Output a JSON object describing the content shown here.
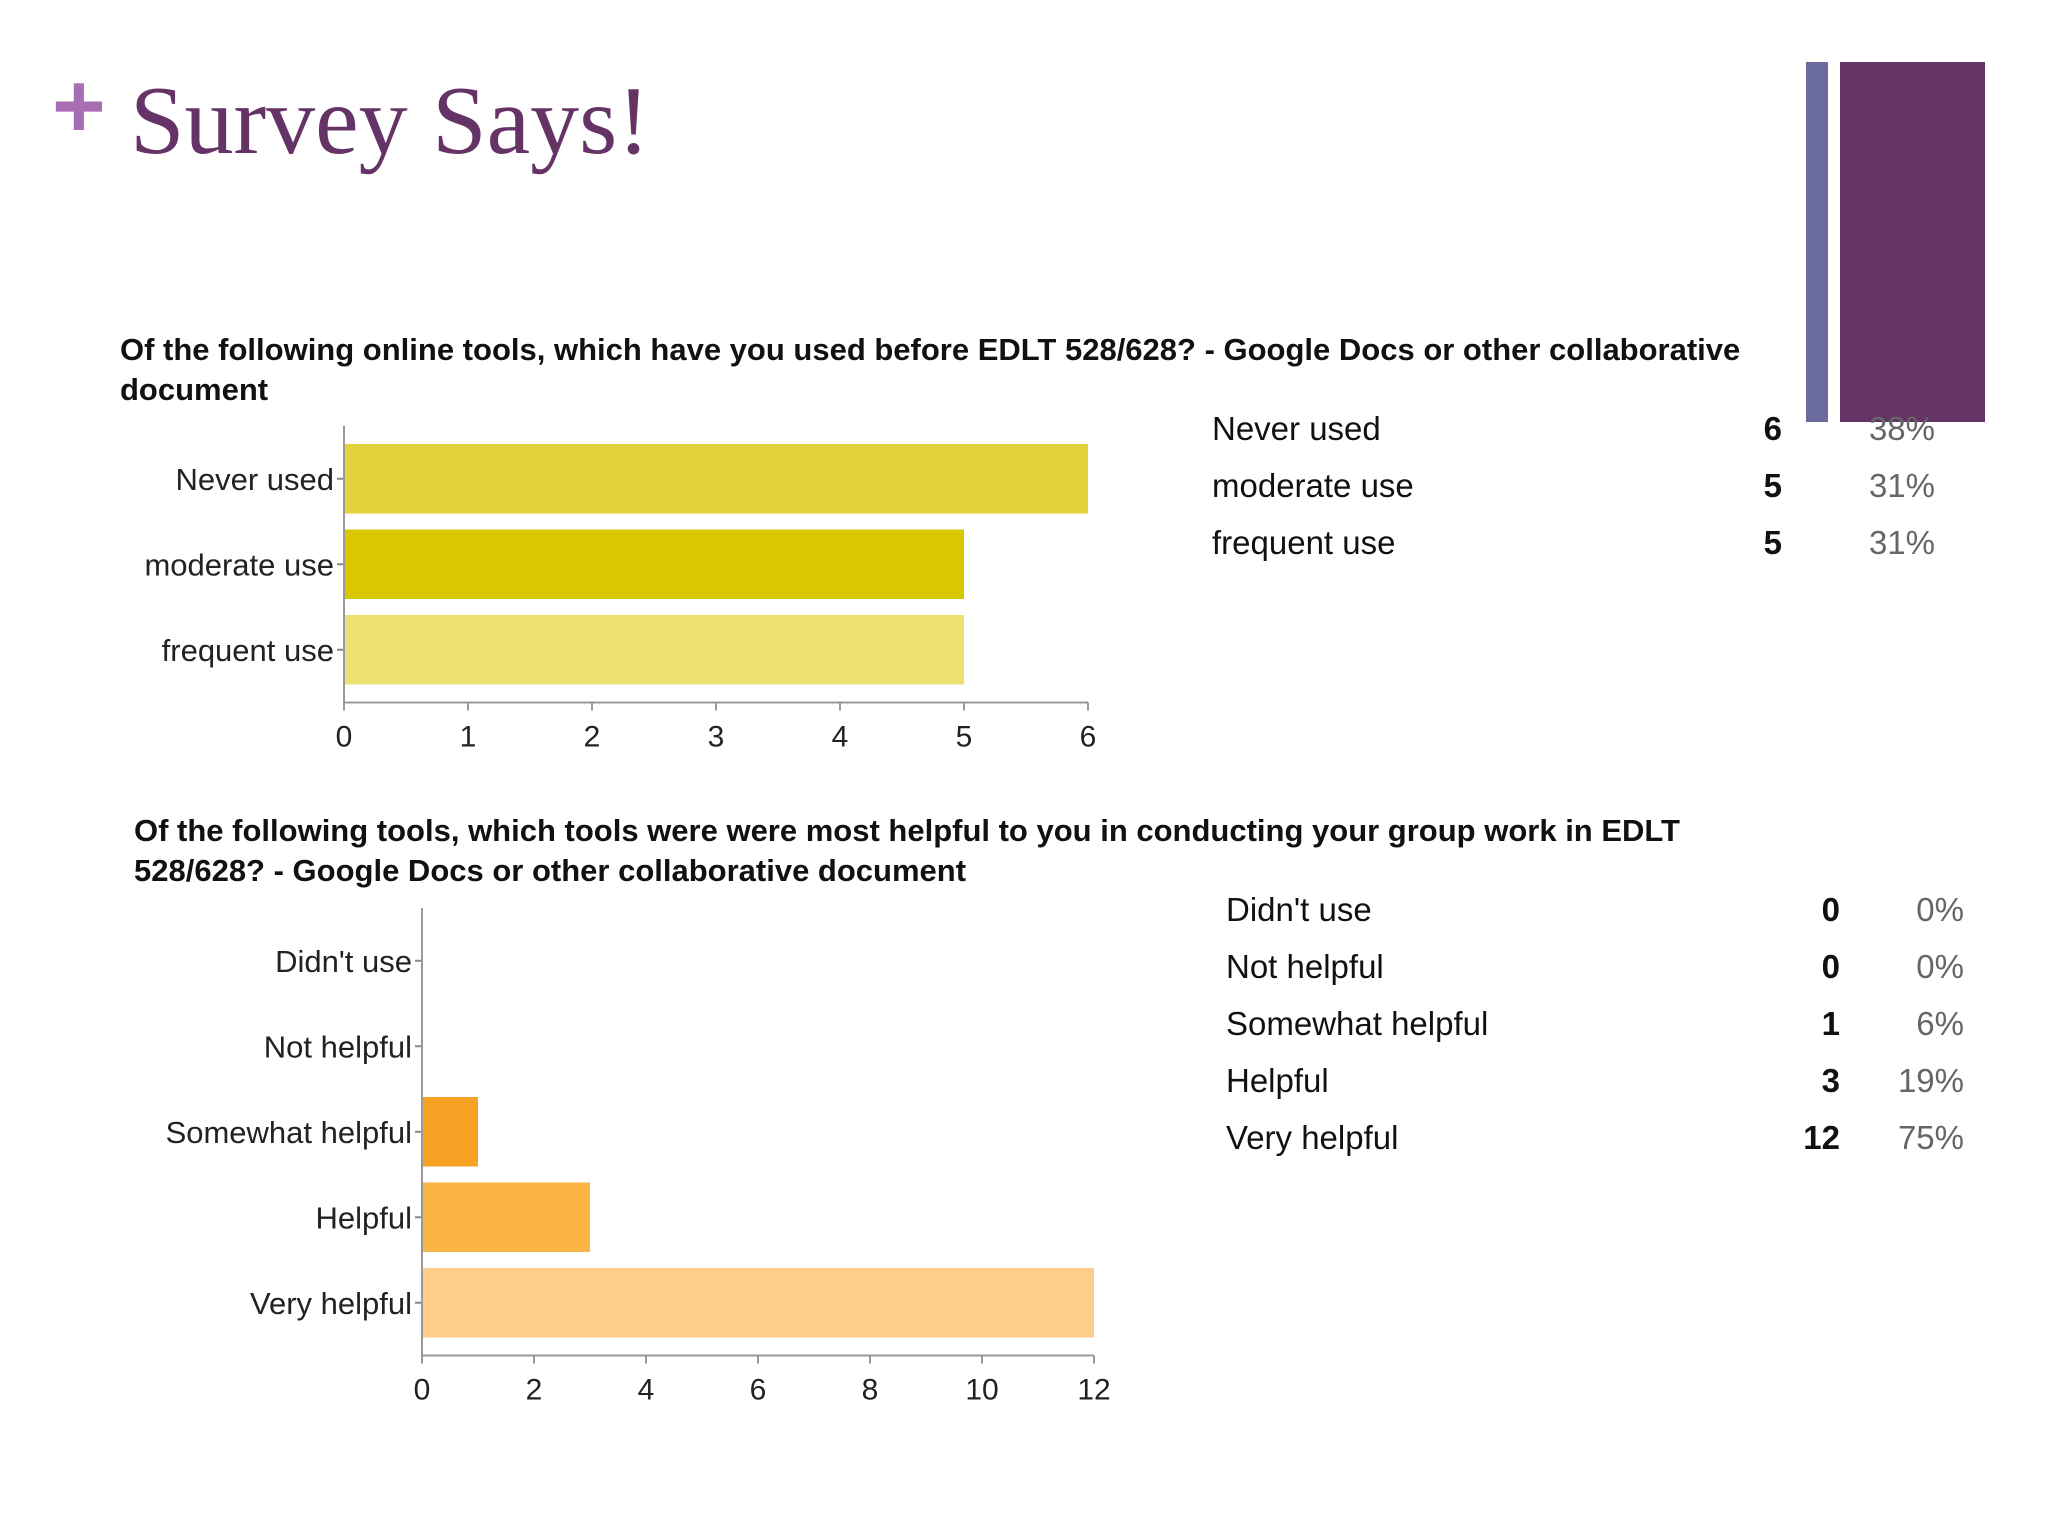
{
  "slide": {
    "plus": "+",
    "title": "Survey Says!"
  },
  "colors": {
    "plus": "#a86db3",
    "title": "#663366",
    "deco_thin": "#6b6b9e",
    "deco_wide": "#663366"
  },
  "questions": [
    {
      "title": "Of the following online tools, which have you used before EDLT 528/628? - Google Docs or other collaborative document",
      "rows": [
        {
          "label": "Never used",
          "count": "6",
          "percent": "38%"
        },
        {
          "label": "moderate use",
          "count": "5",
          "percent": "31%"
        },
        {
          "label": "frequent use",
          "count": "5",
          "percent": "31%"
        }
      ]
    },
    {
      "title": "Of the following tools, which tools were were most helpful to you in conducting your group work in EDLT 528/628? - Google Docs or other collaborative document",
      "rows": [
        {
          "label": "Didn't use",
          "count": "0",
          "percent": "0%"
        },
        {
          "label": "Not helpful",
          "count": "0",
          "percent": "0%"
        },
        {
          "label": "Somewhat helpful",
          "count": "1",
          "percent": "6%"
        },
        {
          "label": "Helpful",
          "count": "3",
          "percent": "19%"
        },
        {
          "label": "Very helpful",
          "count": "12",
          "percent": "75%"
        }
      ]
    }
  ],
  "chart_data": [
    {
      "type": "bar",
      "orientation": "horizontal",
      "categories": [
        "Never used",
        "moderate use",
        "frequent use"
      ],
      "values": [
        6,
        5,
        5
      ],
      "xlim": [
        0,
        6
      ],
      "xticks": [
        0,
        1,
        2,
        3,
        4,
        5,
        6
      ],
      "colors": [
        "#e3d23c",
        "#d9c800",
        "#ebe070"
      ],
      "grid": false
    },
    {
      "type": "bar",
      "orientation": "horizontal",
      "categories": [
        "Didn't use",
        "Not helpful",
        "Somewhat helpful",
        "Helpful",
        "Very helpful"
      ],
      "values": [
        0,
        0,
        1,
        3,
        12
      ],
      "xlim": [
        0,
        12
      ],
      "xticks": [
        0,
        2,
        4,
        6,
        8,
        10,
        12
      ],
      "colors": [
        "#f7a224",
        "#f7a224",
        "#f7a224",
        "#fbb545",
        "#fecd8a"
      ],
      "grid": false
    }
  ]
}
